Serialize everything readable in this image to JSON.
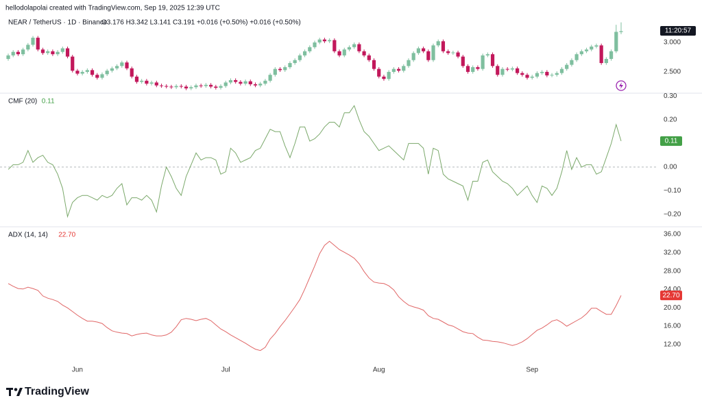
{
  "header": "hellodolapolai created with TradingView.com, Sep 19, 2025 12:39 UTC",
  "logo": "TradingView",
  "chart_data": [
    {
      "type": "candlestick",
      "title": "NEAR / TetherUS · 1D · Binance",
      "legend_text": "O3.176 H3.342 L3.141 C3.191 +0.016 (+0.50%) +0.016 (+0.50%)",
      "countdown": "11:20:57",
      "up_color": "#7fbf9f",
      "down_color": "#c2185b",
      "ylim": [
        2.15,
        3.43
      ],
      "yticks": [
        {
          "value": 3,
          "label": "3.000"
        },
        {
          "value": 2.5,
          "label": "2.500"
        }
      ],
      "ohlc": [
        [
          2.72,
          2.81,
          2.69,
          2.78
        ],
        [
          2.78,
          2.87,
          2.75,
          2.84
        ],
        [
          2.84,
          2.87,
          2.77,
          2.8
        ],
        [
          2.8,
          2.91,
          2.77,
          2.88
        ],
        [
          2.88,
          2.99,
          2.85,
          2.96
        ],
        [
          2.96,
          3.11,
          2.93,
          3.08
        ],
        [
          3.08,
          3.11,
          2.85,
          2.88
        ],
        [
          2.88,
          2.91,
          2.79,
          2.82
        ],
        [
          2.82,
          2.88,
          2.79,
          2.85
        ],
        [
          2.85,
          2.88,
          2.77,
          2.8
        ],
        [
          2.8,
          2.87,
          2.77,
          2.84
        ],
        [
          2.84,
          2.93,
          2.81,
          2.9
        ],
        [
          2.9,
          2.93,
          2.73,
          2.76
        ],
        [
          2.76,
          2.79,
          2.49,
          2.52
        ],
        [
          2.52,
          2.55,
          2.44,
          2.47
        ],
        [
          2.47,
          2.53,
          2.44,
          2.5
        ],
        [
          2.5,
          2.56,
          2.47,
          2.53
        ],
        [
          2.53,
          2.56,
          2.42,
          2.45
        ],
        [
          2.45,
          2.48,
          2.37,
          2.4
        ],
        [
          2.4,
          2.49,
          2.37,
          2.46
        ],
        [
          2.46,
          2.55,
          2.43,
          2.52
        ],
        [
          2.52,
          2.59,
          2.49,
          2.56
        ],
        [
          2.56,
          2.63,
          2.53,
          2.6
        ],
        [
          2.6,
          2.69,
          2.57,
          2.66
        ],
        [
          2.66,
          2.69,
          2.53,
          2.56
        ],
        [
          2.56,
          2.59,
          2.39,
          2.42
        ],
        [
          2.42,
          2.45,
          2.3,
          2.33
        ],
        [
          2.33,
          2.38,
          2.3,
          2.35
        ],
        [
          2.35,
          2.38,
          2.27,
          2.3
        ],
        [
          2.3,
          2.35,
          2.27,
          2.32
        ],
        [
          2.32,
          2.35,
          2.24,
          2.27
        ],
        [
          2.27,
          2.3,
          2.23,
          2.26
        ],
        [
          2.26,
          2.29,
          2.22,
          2.25
        ],
        [
          2.25,
          2.28,
          2.21,
          2.24
        ],
        [
          2.24,
          2.29,
          2.21,
          2.26
        ],
        [
          2.26,
          2.29,
          2.22,
          2.25
        ],
        [
          2.25,
          2.28,
          2.19,
          2.22
        ],
        [
          2.22,
          2.27,
          2.19,
          2.24
        ],
        [
          2.24,
          2.3,
          2.21,
          2.27
        ],
        [
          2.27,
          2.3,
          2.23,
          2.26
        ],
        [
          2.26,
          2.31,
          2.23,
          2.28
        ],
        [
          2.28,
          2.31,
          2.22,
          2.25
        ],
        [
          2.25,
          2.28,
          2.2,
          2.23
        ],
        [
          2.23,
          2.29,
          2.2,
          2.26
        ],
        [
          2.26,
          2.35,
          2.23,
          2.32
        ],
        [
          2.32,
          2.39,
          2.29,
          2.36
        ],
        [
          2.36,
          2.39,
          2.3,
          2.33
        ],
        [
          2.33,
          2.36,
          2.27,
          2.3
        ],
        [
          2.3,
          2.37,
          2.27,
          2.34
        ],
        [
          2.34,
          2.37,
          2.26,
          2.29
        ],
        [
          2.29,
          2.32,
          2.24,
          2.27
        ],
        [
          2.27,
          2.33,
          2.24,
          2.3
        ],
        [
          2.3,
          2.38,
          2.27,
          2.35
        ],
        [
          2.35,
          2.48,
          2.32,
          2.45
        ],
        [
          2.45,
          2.58,
          2.42,
          2.55
        ],
        [
          2.55,
          2.58,
          2.5,
          2.53
        ],
        [
          2.53,
          2.61,
          2.5,
          2.58
        ],
        [
          2.58,
          2.68,
          2.55,
          2.65
        ],
        [
          2.65,
          2.73,
          2.62,
          2.7
        ],
        [
          2.7,
          2.81,
          2.67,
          2.78
        ],
        [
          2.78,
          2.88,
          2.75,
          2.85
        ],
        [
          2.85,
          2.95,
          2.82,
          2.92
        ],
        [
          2.92,
          3.03,
          2.89,
          3.0
        ],
        [
          3.0,
          3.08,
          2.97,
          3.05
        ],
        [
          3.05,
          3.08,
          2.99,
          3.02
        ],
        [
          3.02,
          3.07,
          2.99,
          3.04
        ],
        [
          3.04,
          3.07,
          2.82,
          2.85
        ],
        [
          2.85,
          2.88,
          2.75,
          2.78
        ],
        [
          2.78,
          2.91,
          2.75,
          2.88
        ],
        [
          2.88,
          2.95,
          2.85,
          2.92
        ],
        [
          2.92,
          3.0,
          2.89,
          2.97
        ],
        [
          2.97,
          3.0,
          2.82,
          2.85
        ],
        [
          2.85,
          2.88,
          2.75,
          2.78
        ],
        [
          2.78,
          2.81,
          2.67,
          2.7
        ],
        [
          2.7,
          2.73,
          2.52,
          2.55
        ],
        [
          2.55,
          2.58,
          2.39,
          2.42
        ],
        [
          2.42,
          2.45,
          2.35,
          2.38
        ],
        [
          2.38,
          2.53,
          2.35,
          2.5
        ],
        [
          2.5,
          2.58,
          2.47,
          2.55
        ],
        [
          2.55,
          2.58,
          2.49,
          2.52
        ],
        [
          2.52,
          2.63,
          2.49,
          2.6
        ],
        [
          2.6,
          2.73,
          2.57,
          2.7
        ],
        [
          2.7,
          2.85,
          2.67,
          2.82
        ],
        [
          2.82,
          2.93,
          2.79,
          2.9
        ],
        [
          2.9,
          2.93,
          2.82,
          2.85
        ],
        [
          2.85,
          2.88,
          2.67,
          2.7
        ],
        [
          2.7,
          2.98,
          2.67,
          2.95
        ],
        [
          2.95,
          3.05,
          2.92,
          3.02
        ],
        [
          3.02,
          3.05,
          2.82,
          2.85
        ],
        [
          2.85,
          2.88,
          2.79,
          2.82
        ],
        [
          2.82,
          2.86,
          2.79,
          2.83
        ],
        [
          2.83,
          2.86,
          2.73,
          2.76
        ],
        [
          2.76,
          2.79,
          2.57,
          2.6
        ],
        [
          2.6,
          2.63,
          2.47,
          2.5
        ],
        [
          2.5,
          2.61,
          2.47,
          2.58
        ],
        [
          2.58,
          2.61,
          2.52,
          2.55
        ],
        [
          2.55,
          2.81,
          2.52,
          2.78
        ],
        [
          2.78,
          2.83,
          2.75,
          2.8
        ],
        [
          2.8,
          2.83,
          2.57,
          2.6
        ],
        [
          2.6,
          2.63,
          2.42,
          2.45
        ],
        [
          2.45,
          2.58,
          2.42,
          2.55
        ],
        [
          2.55,
          2.58,
          2.51,
          2.54
        ],
        [
          2.54,
          2.59,
          2.51,
          2.56
        ],
        [
          2.56,
          2.59,
          2.45,
          2.48
        ],
        [
          2.48,
          2.51,
          2.42,
          2.45
        ],
        [
          2.45,
          2.48,
          2.37,
          2.4
        ],
        [
          2.4,
          2.45,
          2.37,
          2.42
        ],
        [
          2.42,
          2.51,
          2.39,
          2.48
        ],
        [
          2.48,
          2.53,
          2.45,
          2.5
        ],
        [
          2.5,
          2.53,
          2.41,
          2.44
        ],
        [
          2.44,
          2.48,
          2.41,
          2.45
        ],
        [
          2.45,
          2.51,
          2.42,
          2.48
        ],
        [
          2.48,
          2.58,
          2.45,
          2.55
        ],
        [
          2.55,
          2.65,
          2.52,
          2.62
        ],
        [
          2.62,
          2.73,
          2.59,
          2.7
        ],
        [
          2.7,
          2.83,
          2.67,
          2.8
        ],
        [
          2.8,
          2.88,
          2.77,
          2.85
        ],
        [
          2.85,
          2.91,
          2.82,
          2.88
        ],
        [
          2.88,
          2.96,
          2.85,
          2.93
        ],
        [
          2.93,
          2.98,
          2.9,
          2.95
        ],
        [
          2.95,
          2.98,
          2.62,
          2.65
        ],
        [
          2.65,
          2.75,
          2.62,
          2.72
        ],
        [
          2.72,
          2.88,
          2.69,
          2.85
        ],
        [
          2.85,
          3.3,
          2.82,
          3.18
        ],
        [
          3.176,
          3.342,
          3.141,
          3.191
        ]
      ]
    },
    {
      "type": "line",
      "title": "CMF (20)",
      "last_label": "0.11",
      "color": "#7aa86a",
      "label_color": "#43a047",
      "zero_line": true,
      "ylim": [
        -0.25,
        0.31
      ],
      "yticks": [
        {
          "value": 0.3,
          "label": "0.30"
        },
        {
          "value": 0.2,
          "label": "0.20"
        },
        {
          "value": 0.1,
          "label": "0.10"
        },
        {
          "value": 0,
          "label": "0.00"
        },
        {
          "value": -0.1,
          "label": "−0.10"
        },
        {
          "value": -0.2,
          "label": "−0.20"
        }
      ],
      "values": [
        -0.01,
        0.01,
        0.01,
        0.02,
        0.07,
        0.02,
        0.04,
        0.05,
        0.02,
        0.01,
        -0.03,
        -0.09,
        -0.21,
        -0.15,
        -0.13,
        -0.12,
        -0.12,
        -0.13,
        -0.14,
        -0.12,
        -0.13,
        -0.12,
        -0.09,
        -0.07,
        -0.16,
        -0.13,
        -0.13,
        -0.14,
        -0.12,
        -0.14,
        -0.19,
        -0.08,
        0.0,
        -0.04,
        -0.09,
        -0.12,
        -0.04,
        0.01,
        0.06,
        0.03,
        0.04,
        0.04,
        0.03,
        -0.03,
        -0.02,
        0.08,
        0.06,
        0.02,
        0.03,
        0.04,
        0.07,
        0.08,
        0.12,
        0.16,
        0.15,
        0.15,
        0.09,
        0.04,
        0.1,
        0.17,
        0.17,
        0.11,
        0.12,
        0.14,
        0.17,
        0.19,
        0.19,
        0.17,
        0.23,
        0.23,
        0.26,
        0.2,
        0.15,
        0.13,
        0.1,
        0.07,
        0.08,
        0.09,
        0.07,
        0.05,
        0.03,
        0.1,
        0.1,
        0.1,
        0.08,
        -0.03,
        0.08,
        0.07,
        -0.03,
        -0.05,
        -0.06,
        -0.07,
        -0.08,
        -0.14,
        -0.06,
        -0.06,
        0.02,
        0.03,
        -0.02,
        -0.04,
        -0.06,
        -0.07,
        -0.09,
        -0.12,
        -0.1,
        -0.08,
        -0.12,
        -0.15,
        -0.08,
        -0.09,
        -0.12,
        -0.09,
        -0.02,
        0.07,
        -0.01,
        0.04,
        0.0,
        0.01,
        0.01,
        -0.03,
        -0.02,
        0.04,
        0.1,
        0.18,
        0.11
      ]
    },
    {
      "type": "line",
      "title": "ADX (14, 14)",
      "last_label": "22.70",
      "color": "#e06666",
      "label_color": "#e53935",
      "ylim": [
        8.7,
        37.5
      ],
      "yticks": [
        {
          "value": 36,
          "label": "36.00"
        },
        {
          "value": 32,
          "label": "32.00"
        },
        {
          "value": 28,
          "label": "28.00"
        },
        {
          "value": 24,
          "label": "24.00"
        },
        {
          "value": 20,
          "label": "20.00"
        },
        {
          "value": 16,
          "label": "16.00"
        },
        {
          "value": 12,
          "label": "12.00"
        }
      ],
      "values": [
        25.3,
        24.7,
        24.2,
        24.1,
        24.5,
        24.2,
        23.8,
        22.6,
        22.1,
        21.8,
        21.4,
        20.6,
        20.0,
        19.2,
        18.4,
        17.7,
        17.1,
        17.1,
        16.9,
        16.6,
        15.7,
        15.0,
        14.7,
        14.5,
        14.4,
        13.9,
        14.2,
        14.4,
        14.5,
        14.1,
        13.9,
        13.9,
        14.1,
        14.7,
        15.9,
        17.4,
        17.7,
        17.5,
        17.2,
        17.5,
        17.7,
        17.2,
        16.3,
        15.4,
        14.8,
        14.1,
        13.5,
        12.9,
        12.3,
        11.6,
        11.0,
        10.7,
        11.4,
        13.2,
        14.4,
        15.9,
        17.2,
        18.7,
        20.2,
        21.8,
        24.1,
        26.6,
        29.1,
        31.8,
        33.6,
        34.5,
        33.6,
        32.7,
        32.1,
        31.5,
        30.8,
        29.6,
        27.9,
        26.5,
        25.6,
        25.4,
        25.3,
        24.8,
        23.9,
        22.4,
        21.4,
        20.6,
        20.2,
        19.9,
        19.5,
        18.3,
        17.7,
        17.5,
        16.9,
        16.3,
        16.0,
        15.4,
        14.8,
        14.5,
        14.4,
        13.6,
        13.0,
        12.9,
        12.7,
        12.6,
        12.4,
        12.1,
        11.8,
        12.1,
        12.6,
        13.3,
        14.2,
        15.1,
        15.6,
        16.3,
        17.1,
        17.4,
        16.8,
        16.0,
        16.6,
        17.2,
        17.8,
        18.7,
        19.9,
        19.9,
        19.2,
        18.6,
        18.6,
        20.5,
        22.7
      ],
      "categories": [
        null,
        null,
        null,
        null,
        null,
        null,
        null,
        null,
        null,
        null,
        null,
        null,
        null,
        null,
        "Jun",
        null,
        null,
        null,
        null,
        null,
        null,
        null,
        null,
        null,
        null,
        null,
        null,
        null,
        null,
        null,
        null,
        null,
        null,
        null,
        null,
        null,
        null,
        null,
        null,
        null,
        null,
        null,
        null,
        null,
        "Jul",
        null,
        null,
        null,
        null,
        null,
        null,
        null,
        null,
        null,
        null,
        null,
        null,
        null,
        null,
        null,
        null,
        null,
        null,
        null,
        null,
        null,
        null,
        null,
        null,
        null,
        null,
        null,
        null,
        null,
        null,
        "Aug",
        null,
        null,
        null,
        null,
        null,
        null,
        null,
        null,
        null,
        null,
        null,
        null,
        null,
        null,
        null,
        null,
        null,
        null,
        null,
        null,
        null,
        null,
        null,
        null,
        null,
        null,
        null,
        null,
        null,
        null,
        "Sep",
        null,
        null,
        null,
        null,
        null,
        null,
        null,
        null,
        null,
        null,
        null,
        null,
        null,
        null,
        null,
        null,
        null,
        null
      ]
    }
  ]
}
